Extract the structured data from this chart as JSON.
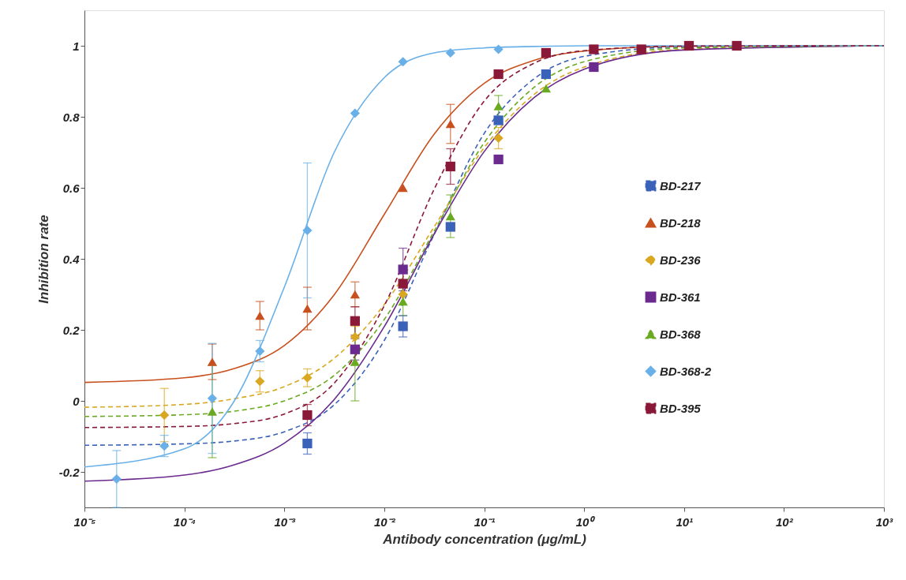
{
  "chart_data": {
    "type": "scatter",
    "xlabel": "Antibody concentration (μg/mL)",
    "ylabel": "Inhibition rate",
    "log": "x",
    "legend": "right",
    "xlim": [
      1e-05,
      1000
    ],
    "ylim": [
      -0.3,
      1.1
    ],
    "xticks": [
      {
        "value": 1e-05,
        "label": "10⁻⁵"
      },
      {
        "value": 0.0001,
        "label": "10⁻⁴"
      },
      {
        "value": 0.001,
        "label": "10⁻³"
      },
      {
        "value": 0.01,
        "label": "10⁻²"
      },
      {
        "value": 0.1,
        "label": "10⁻¹"
      },
      {
        "value": 1,
        "label": "10⁰"
      },
      {
        "value": 10,
        "label": "10¹"
      },
      {
        "value": 100,
        "label": "10²"
      },
      {
        "value": 1000,
        "label": "10³"
      }
    ],
    "yticks": [
      -0.2,
      0,
      0.2,
      0.4,
      0.6,
      0.8,
      1
    ],
    "series": [
      {
        "name": "BD-217",
        "color": "#3a62b8",
        "marker": "square",
        "x": [
          0.0017,
          0.0154,
          0.046,
          0.139,
          0.416
        ],
        "values": [
          -0.12,
          0.21,
          0.49,
          0.79,
          0.92
        ],
        "errors": [
          0.03,
          0.03,
          null,
          null,
          null
        ]
      },
      {
        "name": "BD-218",
        "color": "#c8501e",
        "marker": "triangle",
        "x": [
          0.00019,
          0.00057,
          0.0017,
          0.0051,
          0.0154,
          0.046
        ],
        "values": [
          0.11,
          0.24,
          0.26,
          0.3,
          0.6,
          0.78
        ],
        "errors": [
          0.05,
          0.04,
          0.06,
          0.035,
          null,
          0.055
        ]
      },
      {
        "name": "BD-236",
        "color": "#d9a820",
        "marker": "diamond",
        "x": [
          6.3e-05,
          0.00057,
          0.0017,
          0.0051,
          0.0154,
          0.139
        ],
        "values": [
          -0.04,
          0.055,
          0.065,
          0.18,
          0.3,
          0.74
        ],
        "errors": [
          0.075,
          0.03,
          0.025,
          0.03,
          null,
          0.03
        ]
      },
      {
        "name": "BD-361",
        "color": "#6a2a8e",
        "marker": "square",
        "x": [
          0.0051,
          0.0154,
          0.139,
          1.25
        ],
        "values": [
          0.145,
          0.37,
          0.68,
          0.94
        ],
        "errors": [
          0.03,
          0.06,
          null,
          null
        ]
      },
      {
        "name": "BD-368",
        "color": "#6aaa22",
        "marker": "triangle",
        "x": [
          0.00019,
          0.0051,
          0.0154,
          0.046,
          0.139,
          0.416
        ],
        "values": [
          -0.03,
          0.11,
          0.28,
          0.52,
          0.83,
          0.88
        ],
        "errors": [
          0.13,
          0.11,
          0.04,
          0.06,
          0.03,
          null
        ]
      },
      {
        "name": "BD-368-2",
        "color": "#6ab0e8",
        "marker": "diamond",
        "x": [
          2.1e-05,
          6.3e-05,
          0.00019,
          0.00057,
          0.0017,
          0.0051,
          0.0154,
          0.046,
          0.139
        ],
        "values": [
          -0.22,
          -0.127,
          0.007,
          0.14,
          0.48,
          0.81,
          0.955,
          0.98,
          0.99
        ],
        "errors": [
          0.08,
          0.03,
          0.155,
          0.03,
          0.19,
          null,
          null,
          null,
          null
        ]
      },
      {
        "name": "BD-395",
        "color": "#8a1838",
        "marker": "square",
        "x": [
          0.0017,
          0.0051,
          0.0154,
          0.046,
          0.139,
          0.416,
          1.25,
          3.74,
          11.2,
          33.7
        ],
        "values": [
          -0.04,
          0.225,
          0.33,
          0.66,
          0.92,
          0.98,
          0.99,
          0.99,
          1.0,
          1.0
        ],
        "errors": [
          0.03,
          0.04,
          0.03,
          0.05,
          null,
          null,
          null,
          null,
          null,
          null
        ]
      },
      {
        "type": "line",
        "color": "#3a62b8",
        "line_style": "dashed",
        "x": [
          1e-05,
          0.0001,
          0.000316,
          0.001,
          0.00316,
          0.01,
          0.0316,
          0.1,
          0.316,
          1,
          10,
          1000
        ],
        "values": [
          -0.125,
          -0.121,
          -0.113,
          -0.087,
          -0.011,
          0.17,
          0.469,
          0.753,
          0.907,
          0.97,
          0.997,
          1.0
        ]
      },
      {
        "type": "line",
        "color": "#c8501e",
        "line_style": "solid",
        "x": [
          1e-05,
          0.0001,
          0.000316,
          0.001,
          0.00316,
          0.01,
          0.0316,
          0.1,
          0.316,
          1,
          10,
          1000
        ],
        "values": [
          0.052,
          0.065,
          0.091,
          0.156,
          0.299,
          0.525,
          0.751,
          0.894,
          0.959,
          0.985,
          0.999,
          1.0
        ]
      },
      {
        "type": "line",
        "color": "#d9a820",
        "line_style": "dashed",
        "x": [
          1e-05,
          0.0001,
          0.000316,
          0.001,
          0.00316,
          0.01,
          0.0316,
          0.1,
          0.316,
          1,
          10,
          1000
        ],
        "values": [
          -0.018,
          -0.01,
          0.006,
          0.04,
          0.12,
          0.271,
          0.49,
          0.713,
          0.863,
          0.94,
          0.99,
          1.0
        ]
      },
      {
        "type": "line",
        "color": "#6a2a8e",
        "line_style": "solid",
        "x": [
          1e-05,
          0.0001,
          0.000316,
          0.001,
          0.00316,
          0.01,
          0.0316,
          0.1,
          0.316,
          1,
          10,
          1000
        ],
        "values": [
          -0.226,
          -0.209,
          -0.18,
          -0.119,
          0.004,
          0.209,
          0.47,
          0.702,
          0.854,
          0.934,
          0.988,
          1.0
        ]
      },
      {
        "type": "line",
        "color": "#6aaa22",
        "line_style": "dashed",
        "x": [
          1e-05,
          0.0001,
          0.000316,
          0.001,
          0.00316,
          0.01,
          0.0316,
          0.1,
          0.316,
          1,
          10,
          1000
        ],
        "values": [
          -0.044,
          -0.039,
          -0.029,
          0.0,
          0.072,
          0.229,
          0.478,
          0.727,
          0.883,
          0.955,
          0.994,
          1.0
        ]
      },
      {
        "type": "line",
        "color": "#6ab0e8",
        "line_style": "solid",
        "x": [
          1e-05,
          0.0001,
          0.000316,
          0.001,
          0.00316,
          0.01,
          0.0316,
          0.1,
          0.316,
          1,
          10,
          1000
        ],
        "values": [
          -0.186,
          -0.135,
          0.0,
          0.32,
          0.7,
          0.91,
          0.98,
          0.994,
          0.998,
          1.0,
          1.0,
          1.0
        ]
      },
      {
        "type": "line",
        "color": "#8a1838",
        "line_style": "dashed",
        "x": [
          1e-05,
          0.0001,
          0.000316,
          0.001,
          0.00316,
          0.01,
          0.0316,
          0.1,
          0.316,
          1,
          10,
          1000
        ],
        "values": [
          -0.075,
          -0.072,
          -0.064,
          -0.037,
          0.05,
          0.268,
          0.596,
          0.844,
          0.951,
          0.986,
          0.999,
          1.0
        ]
      }
    ]
  }
}
